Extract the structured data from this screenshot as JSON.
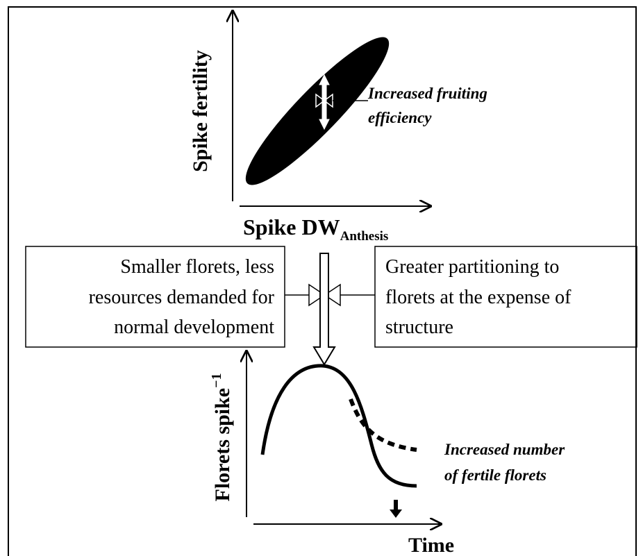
{
  "top_panel": {
    "y_axis_label": "Spike fertility",
    "x_axis_label": {
      "main": "Spike DW",
      "subscript": "Anthesis"
    },
    "annotation": [
      "Increased fruiting",
      "efficiency"
    ]
  },
  "left_box": {
    "lines": [
      "Smaller florets, less",
      "resources demanded for",
      "normal development"
    ]
  },
  "right_box": {
    "lines": [
      "Greater partitioning to",
      "florets at the expense of",
      "structure"
    ]
  },
  "bottom_panel": {
    "y_axis_label": {
      "main": "Florets spike",
      "superscript": "−1"
    },
    "annotation": [
      "Increased number",
      "of fertile florets"
    ],
    "x_axis_label": "Time"
  }
}
